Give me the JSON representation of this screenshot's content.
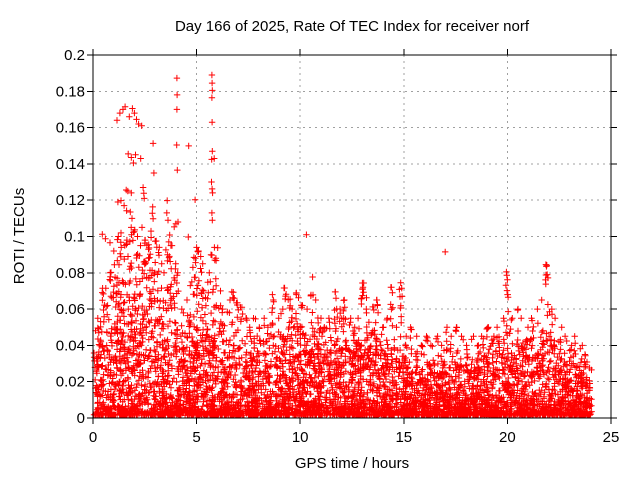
{
  "figure": {
    "background": "#ffffff",
    "border_color": "#000000",
    "text_color": "#000000"
  },
  "chart_data": {
    "type": "scatter",
    "title": "Day 166 of 2025, Rate Of TEC Index for receiver norf",
    "xlabel": "GPS time / hours",
    "ylabel": "ROTI / TECUs",
    "xlim": [
      0,
      25
    ],
    "ylim": [
      0,
      0.2
    ],
    "xtick_labels": [
      "0",
      "5",
      "10",
      "15",
      "20",
      "25"
    ],
    "ytick_labels": [
      "0",
      "0.02",
      "0.04",
      "0.06",
      "0.08",
      "0.1",
      "0.12",
      "0.14",
      "0.16",
      "0.18",
      "0.2"
    ],
    "grid": true,
    "tick_style": "out",
    "legend": "none",
    "marker": "plus",
    "marker_color": "#ff0000",
    "grid_color": "#a0a0a0",
    "data_span_hours": [
      0.03,
      24.07
    ],
    "description": "Dense band of ROTI values 0-0.03 TECU across all 24 hours with frequent spikes to 0.04-0.07; strong activity hours 1-6 reaching 0.19; isolated spike 0.09 at hour 17; clusters 0.08 near hours 20 and 22.",
    "distribution": {
      "seed": 166,
      "n_base": 4600,
      "base_envelope_by_hour": [
        0.05,
        0.06,
        0.062,
        0.058,
        0.05,
        0.052,
        0.046,
        0.04,
        0.042,
        0.046,
        0.046,
        0.044,
        0.044,
        0.046,
        0.042,
        0.034,
        0.032,
        0.034,
        0.032,
        0.036,
        0.046,
        0.044,
        0.048,
        0.03
      ],
      "spikes": [
        [
          0.3,
          0.055
        ],
        [
          0.5,
          0.0715
        ],
        [
          0.7,
          0.062
        ],
        [
          0.85,
          0.08
        ],
        [
          1.05,
          0.092
        ],
        [
          1.2,
          0.1
        ],
        [
          1.35,
          0.102
        ],
        [
          1.5,
          0.095
        ],
        [
          1.65,
          0.098
        ],
        [
          1.8,
          0.105
        ],
        [
          1.95,
          0.11
        ],
        [
          2.1,
          0.1
        ],
        [
          2.25,
          0.095
        ],
        [
          2.4,
          0.105
        ],
        [
          2.55,
          0.098
        ],
        [
          2.7,
          0.0955
        ],
        [
          2.85,
          0.103
        ],
        [
          3.0,
          0.0975
        ],
        [
          3.15,
          0.094
        ],
        [
          3.3,
          0.085
        ],
        [
          3.45,
          0.08
        ],
        [
          3.6,
          0.09
        ],
        [
          3.75,
          0.095
        ],
        [
          3.95,
          0.085
        ],
        [
          4.1,
          0.08
        ],
        [
          4.3,
          0.06
        ],
        [
          4.5,
          0.065
        ],
        [
          4.7,
          0.075
        ],
        [
          4.9,
          0.088
        ],
        [
          5.05,
          0.092
        ],
        [
          5.25,
          0.085
        ],
        [
          5.4,
          0.07
        ],
        [
          5.6,
          0.08
        ],
        [
          5.75,
          0.09
        ],
        [
          5.9,
          0.088
        ],
        [
          6.1,
          0.07
        ],
        [
          6.3,
          0.06
        ],
        [
          6.55,
          0.065
        ],
        [
          6.75,
          0.0695
        ],
        [
          6.95,
          0.0635
        ],
        [
          7.15,
          0.061
        ],
        [
          7.4,
          0.055
        ],
        [
          7.6,
          0.05
        ],
        [
          7.8,
          0.055
        ],
        [
          8.0,
          0.05
        ],
        [
          8.2,
          0.055
        ],
        [
          8.45,
          0.05
        ],
        [
          8.65,
          0.068
        ],
        [
          8.9,
          0.055
        ],
        [
          9.1,
          0.06
        ],
        [
          9.25,
          0.0716
        ],
        [
          9.45,
          0.0655
        ],
        [
          9.65,
          0.06
        ],
        [
          9.85,
          0.0689
        ],
        [
          10.05,
          0.062
        ],
        [
          10.3,
          0.06
        ],
        [
          10.55,
          0.0678
        ],
        [
          10.8,
          0.065
        ],
        [
          11.0,
          0.055
        ],
        [
          11.2,
          0.05
        ],
        [
          11.45,
          0.055
        ],
        [
          11.7,
          0.0695
        ],
        [
          11.95,
          0.06
        ],
        [
          12.15,
          0.065
        ],
        [
          12.4,
          0.055
        ],
        [
          12.6,
          0.05
        ],
        [
          12.8,
          0.055
        ],
        [
          13.0,
          0.0744
        ],
        [
          13.25,
          0.06
        ],
        [
          13.5,
          0.0612
        ],
        [
          13.7,
          0.065
        ],
        [
          13.95,
          0.05
        ],
        [
          14.15,
          0.055
        ],
        [
          14.4,
          0.072
        ],
        [
          14.6,
          0.05
        ],
        [
          14.85,
          0.0745
        ],
        [
          15.1,
          0.045
        ],
        [
          15.35,
          0.05
        ],
        [
          15.6,
          0.045
        ],
        [
          15.85,
          0.04
        ],
        [
          16.1,
          0.045
        ],
        [
          16.35,
          0.04
        ],
        [
          16.6,
          0.045
        ],
        [
          16.85,
          0.04
        ],
        [
          17.05,
          0.05
        ],
        [
          17.3,
          0.045
        ],
        [
          17.55,
          0.05
        ],
        [
          17.8,
          0.045
        ],
        [
          18.05,
          0.04
        ],
        [
          18.3,
          0.045
        ],
        [
          18.55,
          0.04
        ],
        [
          18.8,
          0.045
        ],
        [
          19.05,
          0.05
        ],
        [
          19.3,
          0.045
        ],
        [
          19.55,
          0.05
        ],
        [
          19.8,
          0.055
        ],
        [
          20.0,
          0.068
        ],
        [
          20.2,
          0.055
        ],
        [
          20.45,
          0.06
        ],
        [
          20.7,
          0.055
        ],
        [
          20.95,
          0.05
        ],
        [
          21.2,
          0.055
        ],
        [
          21.45,
          0.06
        ],
        [
          21.7,
          0.065
        ],
        [
          21.9,
          0.0788
        ],
        [
          22.1,
          0.06
        ],
        [
          22.3,
          0.055
        ],
        [
          22.55,
          0.05
        ],
        [
          22.8,
          0.045
        ],
        [
          23.05,
          0.04
        ],
        [
          23.3,
          0.045
        ],
        [
          23.55,
          0.04
        ],
        [
          23.8,
          0.035
        ]
      ]
    },
    "outlier_points": [
      [
        4.05,
        0.1873
      ],
      [
        4.06,
        0.178
      ],
      [
        4.05,
        0.17
      ],
      [
        4.04,
        0.1504
      ],
      [
        4.07,
        0.1366
      ],
      [
        4.62,
        0.1499
      ],
      [
        4.6,
        0.0997
      ],
      [
        5.74,
        0.189
      ],
      [
        5.75,
        0.1845
      ],
      [
        5.76,
        0.1805
      ],
      [
        5.74,
        0.1765
      ],
      [
        5.75,
        0.163
      ],
      [
        5.76,
        0.147
      ],
      [
        5.85,
        0.143
      ],
      [
        5.73,
        0.1425
      ],
      [
        5.72,
        0.13
      ],
      [
        5.75,
        0.1262
      ],
      [
        5.77,
        0.124
      ],
      [
        5.74,
        0.113
      ],
      [
        5.76,
        0.109
      ],
      [
        6.02,
        0.0938
      ],
      [
        5.86,
        0.094
      ],
      [
        5.88,
        0.087
      ],
      [
        1.16,
        0.164
      ],
      [
        1.3,
        0.168
      ],
      [
        1.45,
        0.17
      ],
      [
        1.55,
        0.1715
      ],
      [
        1.75,
        0.166
      ],
      [
        1.9,
        0.1705
      ],
      [
        2.0,
        0.168
      ],
      [
        2.1,
        0.1645
      ],
      [
        2.2,
        0.162
      ],
      [
        2.35,
        0.161
      ],
      [
        1.7,
        0.1455
      ],
      [
        1.85,
        0.1435
      ],
      [
        2.05,
        0.145
      ],
      [
        2.3,
        0.143
      ],
      [
        1.95,
        0.1405
      ],
      [
        1.6,
        0.1256
      ],
      [
        1.68,
        0.125
      ],
      [
        1.85,
        0.124
      ],
      [
        2.42,
        0.127
      ],
      [
        2.45,
        0.1238
      ],
      [
        2.47,
        0.121
      ],
      [
        1.2,
        0.119
      ],
      [
        1.35,
        0.1198
      ],
      [
        1.5,
        0.117
      ],
      [
        1.62,
        0.1142
      ],
      [
        1.8,
        0.1135
      ],
      [
        2.9,
        0.1513
      ],
      [
        2.94,
        0.135
      ],
      [
        2.88,
        0.1163
      ],
      [
        2.86,
        0.1128
      ],
      [
        2.9,
        0.1098
      ],
      [
        3.58,
        0.1198
      ],
      [
        3.56,
        0.113
      ],
      [
        3.62,
        0.109
      ],
      [
        3.52,
        0.0926
      ],
      [
        3.66,
        0.097
      ],
      [
        3.7,
        0.1008
      ],
      [
        3.76,
        0.095
      ],
      [
        3.92,
        0.1053
      ],
      [
        4.0,
        0.107
      ],
      [
        4.1,
        0.108
      ],
      [
        4.93,
        0.1202
      ],
      [
        4.82,
        0.083
      ],
      [
        4.87,
        0.0885
      ],
      [
        5.0,
        0.094
      ],
      [
        5.08,
        0.0915
      ],
      [
        5.2,
        0.089
      ],
      [
        0.45,
        0.1012
      ],
      [
        0.6,
        0.0988
      ],
      [
        0.82,
        0.0966
      ],
      [
        0.87,
        0.0802
      ],
      [
        0.84,
        0.0756
      ],
      [
        0.62,
        0.0715
      ],
      [
        0.5,
        0.0684
      ],
      [
        1.34,
        0.0968
      ],
      [
        1.36,
        0.094
      ],
      [
        2.52,
        0.098
      ],
      [
        2.6,
        0.0952
      ],
      [
        2.68,
        0.093
      ],
      [
        2.76,
        0.0902
      ],
      [
        3.0,
        0.0974
      ],
      [
        3.08,
        0.0941
      ],
      [
        3.16,
        0.0912
      ],
      [
        6.7,
        0.0695
      ],
      [
        6.82,
        0.066
      ],
      [
        6.92,
        0.0634
      ],
      [
        7.12,
        0.061
      ],
      [
        8.66,
        0.068
      ],
      [
        8.72,
        0.064
      ],
      [
        9.22,
        0.0716
      ],
      [
        9.32,
        0.0682
      ],
      [
        9.42,
        0.0652
      ],
      [
        9.5,
        0.0606
      ],
      [
        9.8,
        0.0688
      ],
      [
        9.92,
        0.0662
      ],
      [
        10.05,
        0.0621
      ],
      [
        10.3,
        0.101
      ],
      [
        10.6,
        0.0777
      ],
      [
        10.62,
        0.0678
      ],
      [
        11.7,
        0.0695
      ],
      [
        11.73,
        0.066
      ],
      [
        11.76,
        0.0601
      ],
      [
        11.79,
        0.0556
      ],
      [
        12.1,
        0.0648
      ],
      [
        12.15,
        0.061
      ],
      [
        13.0,
        0.0744
      ],
      [
        13.03,
        0.072
      ],
      [
        12.97,
        0.066
      ],
      [
        13.2,
        0.0662
      ],
      [
        13.5,
        0.0612
      ],
      [
        13.55,
        0.0595
      ],
      [
        13.7,
        0.065
      ],
      [
        13.73,
        0.062
      ],
      [
        13.76,
        0.058
      ],
      [
        14.4,
        0.072
      ],
      [
        14.45,
        0.069
      ],
      [
        14.85,
        0.0745
      ],
      [
        14.9,
        0.0715
      ],
      [
        14.92,
        0.067
      ],
      [
        17.0,
        0.0915
      ],
      [
        19.95,
        0.0805
      ],
      [
        19.97,
        0.0786
      ],
      [
        20.0,
        0.0762
      ],
      [
        19.93,
        0.0731
      ],
      [
        19.98,
        0.0702
      ],
      [
        20.02,
        0.068
      ],
      [
        21.86,
        0.0845
      ],
      [
        21.9,
        0.0842
      ],
      [
        21.88,
        0.0835
      ],
      [
        21.92,
        0.079
      ],
      [
        21.87,
        0.0788
      ]
    ]
  }
}
